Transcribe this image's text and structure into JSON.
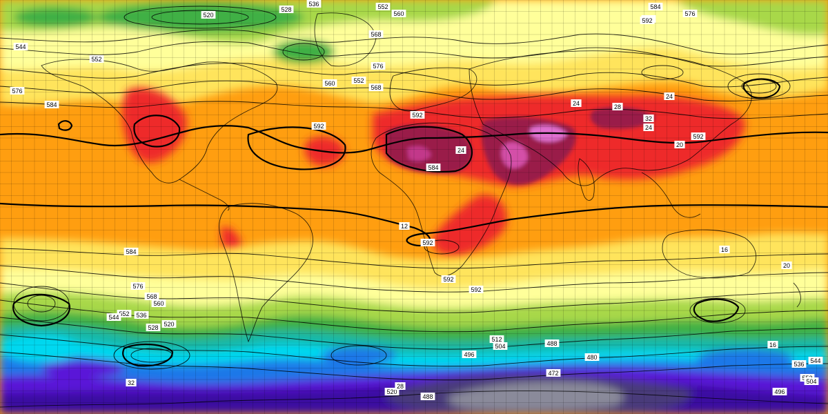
{
  "map": {
    "type": "global-geopotential-height-temperature-map",
    "projection": "equirectangular",
    "graticule_step_degrees": 5,
    "colors": {
      "ocean_base": "#ff9e10",
      "tropical_hot": "#ee2b2b",
      "extreme_hot": "#9a1e4a",
      "extreme_peak": "#d44fa8",
      "warm_orange": "#f07a10",
      "yellow": "#f6e45a",
      "pale_yellow": "#ffff9a",
      "light_green": "#a8d848",
      "green": "#3fb045",
      "teal": "#19b8a8",
      "cyan": "#00d8f0",
      "blue": "#1a78e8",
      "violet": "#5a18d8",
      "deep_purple": "#3a0aa0",
      "antarctic_dark": "#4a3a7a",
      "antarctic_grey": "#8a8a9a",
      "contour": "#000000",
      "coastline": "#000000"
    },
    "contour_labels": [
      "536",
      "528",
      "520",
      "552",
      "560",
      "568",
      "576",
      "584",
      "592",
      "552",
      "544",
      "568",
      "576",
      "560",
      "552",
      "568",
      "576",
      "584",
      "592",
      "592",
      "592",
      "24",
      "584",
      "592",
      "592",
      "592",
      "584",
      "576",
      "568",
      "560",
      "552",
      "544",
      "536",
      "528",
      "520",
      "512",
      "504",
      "496",
      "488",
      "480",
      "472",
      "536",
      "544",
      "552",
      "504",
      "520",
      "488",
      "496",
      "28",
      "32",
      "24",
      "12",
      "16",
      "20",
      "24",
      "28",
      "32",
      "24",
      "20",
      "16"
    ]
  }
}
